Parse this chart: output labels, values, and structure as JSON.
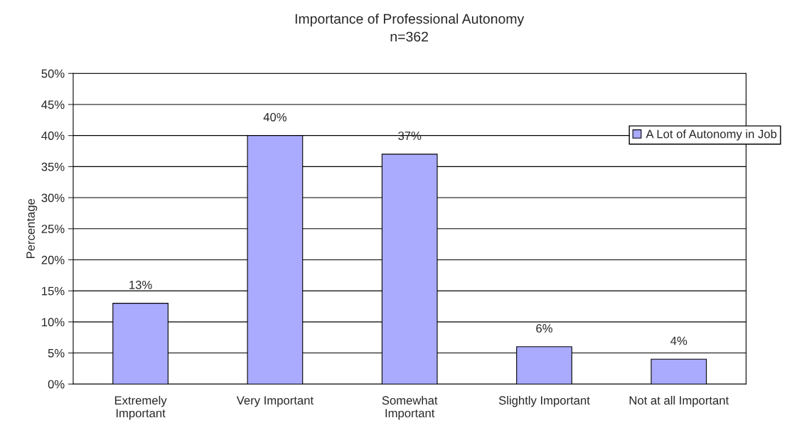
{
  "chart_data": {
    "type": "bar",
    "title": "Importance of Professional Autonomy",
    "subtitle": "n=362",
    "ylabel": "Percentage",
    "categories": [
      "Extremely\nImportant",
      "Very Important",
      "Somewhat\nImportant",
      "Slightly Important",
      "Not at all Important"
    ],
    "series": [
      {
        "name": "A Lot of Autonomy in Job",
        "color": "#aaaaff",
        "values": [
          13,
          40,
          37,
          6,
          4
        ],
        "value_labels": [
          "13%",
          "40%",
          "37%",
          "6%",
          "4%"
        ]
      }
    ],
    "ylim": [
      0,
      50
    ],
    "yticks": [
      {
        "value": 0,
        "label": "0%"
      },
      {
        "value": 5,
        "label": "5%"
      },
      {
        "value": 10,
        "label": "10%"
      },
      {
        "value": 15,
        "label": "15%"
      },
      {
        "value": 20,
        "label": "20%"
      },
      {
        "value": 25,
        "label": "25%"
      },
      {
        "value": 30,
        "label": "30%"
      },
      {
        "value": 35,
        "label": "35%"
      },
      {
        "value": 40,
        "label": "40%"
      },
      {
        "value": 45,
        "label": "45%"
      },
      {
        "value": 50,
        "label": "50%"
      }
    ],
    "grid": "y",
    "legend": "top right"
  }
}
